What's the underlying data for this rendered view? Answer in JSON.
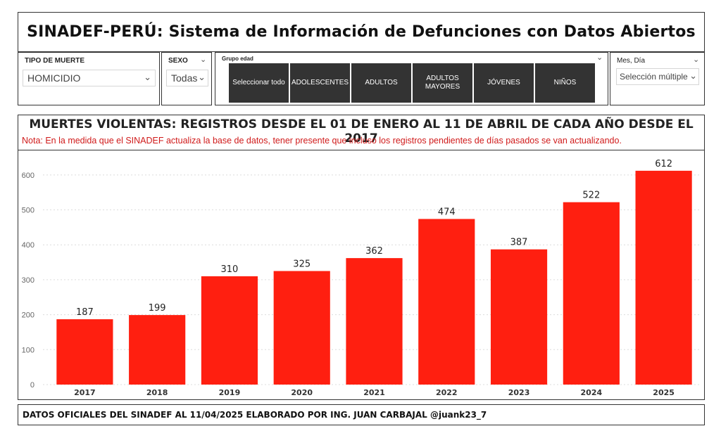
{
  "header": {
    "title": "SINADEF-PERÚ: Sistema de Información de Defunciones con Datos Abiertos"
  },
  "slicers": {
    "tipo": {
      "label": "TIPO DE MUERTE",
      "value": "HOMICIDIO"
    },
    "sexo": {
      "label": "SEXO",
      "value": "Todas"
    },
    "edad": {
      "label": "Grupo edad",
      "tiles": [
        "Seleccionar todo",
        "ADOLESCENTES",
        "ADULTOS",
        "ADULTOS MAYORES",
        "JÓVENES",
        "NIÑOS"
      ]
    },
    "mes": {
      "label": "Mes, Día",
      "value": "Selección múltiple"
    }
  },
  "icons": {
    "chevron": "chevron-down-icon"
  },
  "colors": {
    "bar": "#ff1f10",
    "note": "#d01a1a"
  },
  "chart_title": "MUERTES VIOLENTAS: REGISTROS DESDE EL 01 DE ENERO AL 11 DE ABRIL DE CADA AÑO DESDE EL 2017",
  "chart_note": "Nota: En la medida que el SINADEF actualiza la base de datos, tener presente que incluso los registros pendientes de días pasados se van actualizando.",
  "chart_data": {
    "type": "bar",
    "categories": [
      "2017",
      "2018",
      "2019",
      "2020",
      "2021",
      "2022",
      "2023",
      "2024",
      "2025"
    ],
    "values": [
      187,
      199,
      310,
      325,
      362,
      474,
      387,
      522,
      612
    ],
    "yticks": [
      "0",
      "100",
      "200",
      "300",
      "400",
      "500",
      "600"
    ],
    "ylim": [
      0,
      650
    ],
    "grid": true
  },
  "footer": {
    "text": "DATOS OFICIALES DEL SINADEF AL 11/04/2025 ELABORADO POR ING. JUAN CARBAJAL @juank23_7"
  }
}
